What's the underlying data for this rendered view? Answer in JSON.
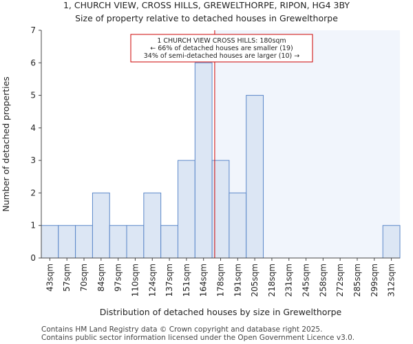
{
  "header": {
    "line1": "1, CHURCH VIEW, CROSS HILLS, GREWELTHORPE, RIPON, HG4 3BY",
    "line2": "Size of property relative to detached houses in Grewelthorpe"
  },
  "footer": {
    "line1": "Contains HM Land Registry data © Crown copyright and database right 2025.",
    "line2": "Contains public sector information licensed under the Open Government Licence v3.0."
  },
  "colors": {
    "bar_fill": "#dce6f4",
    "bar_stroke": "#5b87c9",
    "highlight_bg": "#f1f5fc",
    "marker": "#cc0000"
  },
  "chart_data": {
    "type": "bar",
    "title": "1, CHURCH VIEW, CROSS HILLS, GREWELTHORPE, RIPON, HG4 3BY",
    "subtitle": "Size of property relative to detached houses in Grewelthorpe",
    "xlabel": "Distribution of detached houses by size in Grewelthorpe",
    "ylabel": "Number of detached properties",
    "categories": [
      "43sqm",
      "57sqm",
      "70sqm",
      "84sqm",
      "97sqm",
      "110sqm",
      "124sqm",
      "137sqm",
      "151sqm",
      "164sqm",
      "178sqm",
      "191sqm",
      "205sqm",
      "218sqm",
      "231sqm",
      "245sqm",
      "258sqm",
      "272sqm",
      "285sqm",
      "299sqm",
      "312sqm"
    ],
    "values": [
      1,
      1,
      1,
      2,
      1,
      1,
      2,
      1,
      3,
      6,
      3,
      2,
      5,
      0,
      0,
      0,
      0,
      0,
      0,
      0,
      1
    ],
    "ylim": [
      0,
      7
    ],
    "yticks": [
      0,
      1,
      2,
      3,
      4,
      5,
      6,
      7
    ],
    "marker_value_sqm": 180,
    "annotation": {
      "line1": "1 CHURCH VIEW CROSS HILLS: 180sqm",
      "line2": "← 66% of detached houses are smaller (19)",
      "line3": "34% of semi-detached houses are larger (10) →"
    }
  }
}
